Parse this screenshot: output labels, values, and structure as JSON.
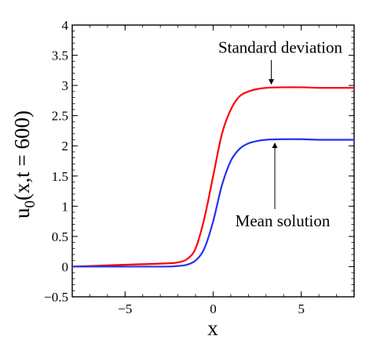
{
  "chart_data": {
    "type": "line",
    "title": "",
    "xlabel": "x",
    "ylabel": "u0(x,t = 600)",
    "ylabel_parts": {
      "main": "u",
      "sub": "0",
      "rest": "(x,t = 600)"
    },
    "xlim": [
      -8,
      8
    ],
    "ylim": [
      -0.5,
      4
    ],
    "xticks": [
      -5,
      0,
      5
    ],
    "xtick_labels": [
      "−5",
      "0",
      "5"
    ],
    "yticks": [
      -0.5,
      0,
      0.5,
      1,
      1.5,
      2,
      2.5,
      3,
      3.5,
      4
    ],
    "ytick_labels": [
      "−0.5",
      "0",
      "0.5",
      "1",
      "1.5",
      "2",
      "2.5",
      "3",
      "3.5",
      "4"
    ],
    "grid": false,
    "series": [
      {
        "name": "Standard deviation",
        "color": "#ff0000",
        "x": [
          -8,
          -6,
          -4,
          -3,
          -2,
          -1.5,
          -1,
          -0.5,
          0,
          0.5,
          1,
          1.5,
          2,
          2.5,
          3,
          4,
          5,
          6,
          8
        ],
        "y": [
          0.0,
          0.02,
          0.04,
          0.05,
          0.07,
          0.12,
          0.3,
          0.8,
          1.5,
          2.2,
          2.6,
          2.82,
          2.9,
          2.94,
          2.96,
          2.97,
          2.97,
          2.96,
          2.96
        ]
      },
      {
        "name": "Mean solution",
        "color": "#2233ee",
        "x": [
          -8,
          -6,
          -4,
          -3,
          -2,
          -1.5,
          -1,
          -0.5,
          0,
          0.5,
          1,
          1.5,
          2,
          2.5,
          3,
          4,
          5,
          6,
          8
        ],
        "y": [
          0.0,
          0.0,
          0.0,
          0.0,
          0.01,
          0.03,
          0.1,
          0.3,
          0.75,
          1.35,
          1.75,
          1.95,
          2.04,
          2.08,
          2.1,
          2.11,
          2.11,
          2.1,
          2.1
        ]
      }
    ],
    "annotations": [
      {
        "text": "Standard deviation",
        "target_series": 0,
        "point": [
          3.3,
          2.97
        ],
        "label_at": [
          3.3,
          3.5
        ]
      },
      {
        "text": "Mean solution",
        "target_series": 1,
        "point": [
          3.5,
          2.11
        ],
        "label_at": [
          3.5,
          0.9
        ]
      }
    ]
  }
}
